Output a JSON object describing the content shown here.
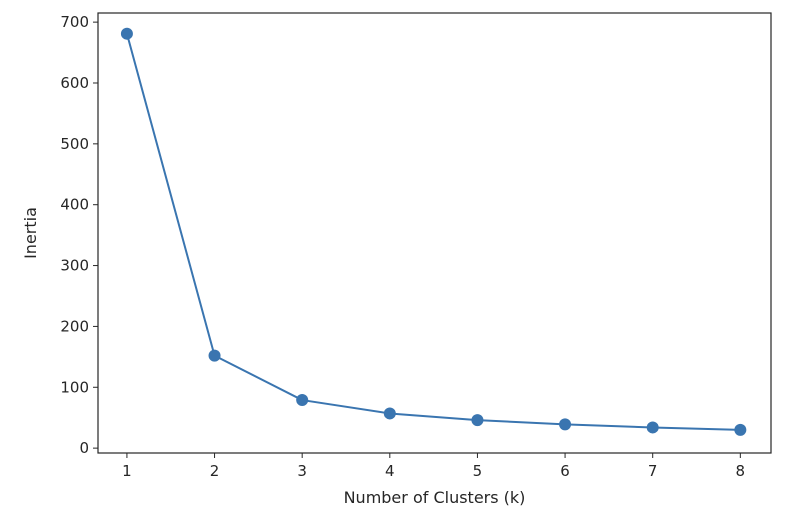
{
  "chart_data": {
    "type": "line",
    "title": "",
    "xlabel": "Number of Clusters (k)",
    "ylabel": "Inertia",
    "x": [
      1,
      2,
      3,
      4,
      5,
      6,
      7,
      8
    ],
    "series": [
      {
        "values": [
          681,
          152,
          79,
          57,
          46,
          39,
          34,
          30
        ],
        "color": "#3a75b0",
        "marker": "circle"
      }
    ],
    "xlim": [
      0.67,
      8.35
    ],
    "ylim": [
      -8,
      715
    ],
    "xticks": [
      1,
      2,
      3,
      4,
      5,
      6,
      7,
      8
    ],
    "yticks": [
      0,
      100,
      200,
      300,
      400,
      500,
      600,
      700
    ],
    "grid": false,
    "legend": "none"
  }
}
